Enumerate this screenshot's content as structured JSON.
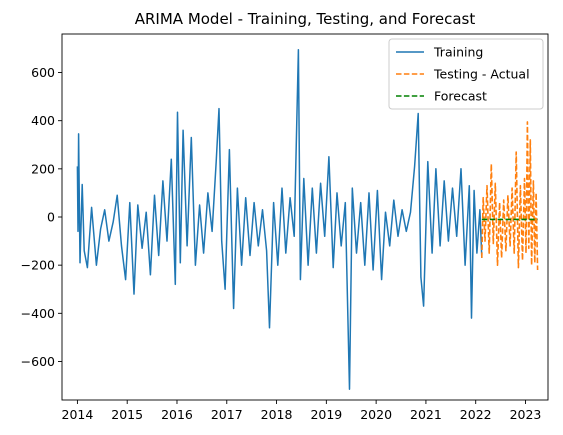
{
  "chart_data": {
    "type": "line",
    "title": "ARIMA Model - Training, Testing, and Forecast",
    "xlabel": "",
    "ylabel": "",
    "x_ticks": [
      "2014",
      "2015",
      "2016",
      "2017",
      "2018",
      "2019",
      "2020",
      "2021",
      "2022",
      "2023"
    ],
    "y_ticks": [
      "−600",
      "−400",
      "−200",
      "0",
      "200",
      "400",
      "600"
    ],
    "xlim": [
      "2013-09-10",
      "2023-06-15"
    ],
    "ylim": [
      -760,
      760
    ],
    "grid": false,
    "legend_position": "top-right",
    "series": [
      {
        "name": "Training",
        "color": "#1f77b4",
        "style": "solid",
        "points": [
          [
            "2014-01-01",
            210
          ],
          [
            "2014-01-05",
            -60
          ],
          [
            "2014-01-10",
            345
          ],
          [
            "2014-01-20",
            -190
          ],
          [
            "2014-02-05",
            135
          ],
          [
            "2014-02-20",
            -140
          ],
          [
            "2014-03-15",
            -210
          ],
          [
            "2014-04-15",
            40
          ],
          [
            "2014-05-20",
            -200
          ],
          [
            "2014-06-20",
            -50
          ],
          [
            "2014-07-20",
            30
          ],
          [
            "2014-08-20",
            -100
          ],
          [
            "2014-09-20",
            -20
          ],
          [
            "2014-10-20",
            90
          ],
          [
            "2014-11-20",
            -120
          ],
          [
            "2014-12-20",
            -260
          ],
          [
            "2015-01-20",
            60
          ],
          [
            "2015-02-20",
            -320
          ],
          [
            "2015-03-20",
            50
          ],
          [
            "2015-04-20",
            -130
          ],
          [
            "2015-05-20",
            20
          ],
          [
            "2015-06-20",
            -240
          ],
          [
            "2015-07-20",
            90
          ],
          [
            "2015-08-20",
            -160
          ],
          [
            "2015-09-20",
            150
          ],
          [
            "2015-10-20",
            -100
          ],
          [
            "2015-11-20",
            240
          ],
          [
            "2015-12-20",
            -280
          ],
          [
            "2016-01-05",
            435
          ],
          [
            "2016-01-25",
            -190
          ],
          [
            "2016-02-15",
            360
          ],
          [
            "2016-03-15",
            -120
          ],
          [
            "2016-04-15",
            330
          ],
          [
            "2016-05-15",
            -200
          ],
          [
            "2016-06-15",
            50
          ],
          [
            "2016-07-15",
            -150
          ],
          [
            "2016-08-15",
            100
          ],
          [
            "2016-09-15",
            -60
          ],
          [
            "2016-10-15",
            230
          ],
          [
            "2016-11-05",
            450
          ],
          [
            "2016-11-25",
            -100
          ],
          [
            "2016-12-20",
            -300
          ],
          [
            "2017-01-20",
            280
          ],
          [
            "2017-02-20",
            -380
          ],
          [
            "2017-03-20",
            120
          ],
          [
            "2017-04-20",
            -200
          ],
          [
            "2017-05-20",
            80
          ],
          [
            "2017-06-20",
            -160
          ],
          [
            "2017-07-20",
            60
          ],
          [
            "2017-08-20",
            -120
          ],
          [
            "2017-09-20",
            30
          ],
          [
            "2017-10-20",
            -140
          ],
          [
            "2017-11-10",
            -460
          ],
          [
            "2017-12-10",
            60
          ],
          [
            "2018-01-10",
            -200
          ],
          [
            "2018-02-10",
            120
          ],
          [
            "2018-03-10",
            -150
          ],
          [
            "2018-04-10",
            80
          ],
          [
            "2018-05-10",
            -80
          ],
          [
            "2018-06-10",
            695
          ],
          [
            "2018-06-25",
            -260
          ],
          [
            "2018-07-20",
            160
          ],
          [
            "2018-08-20",
            -200
          ],
          [
            "2018-09-20",
            120
          ],
          [
            "2018-10-20",
            -150
          ],
          [
            "2018-11-20",
            140
          ],
          [
            "2018-12-20",
            -80
          ],
          [
            "2019-01-20",
            250
          ],
          [
            "2019-02-20",
            -210
          ],
          [
            "2019-03-20",
            100
          ],
          [
            "2019-04-20",
            -120
          ],
          [
            "2019-05-20",
            60
          ],
          [
            "2019-06-20",
            -715
          ],
          [
            "2019-07-10",
            120
          ],
          [
            "2019-08-10",
            -150
          ],
          [
            "2019-09-10",
            60
          ],
          [
            "2019-10-10",
            -200
          ],
          [
            "2019-11-10",
            100
          ],
          [
            "2019-12-10",
            -220
          ],
          [
            "2020-01-10",
            110
          ],
          [
            "2020-02-10",
            -260
          ],
          [
            "2020-03-10",
            20
          ],
          [
            "2020-04-10",
            -120
          ],
          [
            "2020-05-10",
            70
          ],
          [
            "2020-06-10",
            -80
          ],
          [
            "2020-07-10",
            30
          ],
          [
            "2020-08-10",
            -60
          ],
          [
            "2020-09-10",
            20
          ],
          [
            "2020-10-10",
            210
          ],
          [
            "2020-11-05",
            430
          ],
          [
            "2020-11-25",
            -250
          ],
          [
            "2020-12-15",
            -370
          ],
          [
            "2021-01-15",
            230
          ],
          [
            "2021-02-15",
            -150
          ],
          [
            "2021-03-15",
            200
          ],
          [
            "2021-04-15",
            -120
          ],
          [
            "2021-05-15",
            150
          ],
          [
            "2021-06-15",
            -100
          ],
          [
            "2021-07-15",
            120
          ],
          [
            "2021-08-15",
            -80
          ],
          [
            "2021-09-15",
            200
          ],
          [
            "2021-10-15",
            -200
          ],
          [
            "2021-11-15",
            130
          ],
          [
            "2021-12-01",
            -420
          ],
          [
            "2021-12-20",
            110
          ],
          [
            "2022-01-10",
            -150
          ],
          [
            "2022-02-01",
            30
          ],
          [
            "2022-02-15",
            -170
          ]
        ]
      },
      {
        "name": "Testing - Actual",
        "color": "#ff7f0e",
        "style": "dashed",
        "points": [
          [
            "2022-02-15",
            -170
          ],
          [
            "2022-02-25",
            80
          ],
          [
            "2022-03-10",
            -100
          ],
          [
            "2022-03-25",
            130
          ],
          [
            "2022-04-10",
            -150
          ],
          [
            "2022-04-25",
            220
          ],
          [
            "2022-05-10",
            -110
          ],
          [
            "2022-05-25",
            140
          ],
          [
            "2022-06-10",
            -200
          ],
          [
            "2022-06-25",
            60
          ],
          [
            "2022-07-10",
            -170
          ],
          [
            "2022-07-25",
            70
          ],
          [
            "2022-08-10",
            -140
          ],
          [
            "2022-08-25",
            90
          ],
          [
            "2022-09-10",
            -120
          ],
          [
            "2022-09-25",
            120
          ],
          [
            "2022-10-10",
            -150
          ],
          [
            "2022-10-25",
            270
          ],
          [
            "2022-11-10",
            -210
          ],
          [
            "2022-11-25",
            130
          ],
          [
            "2022-12-10",
            -180
          ],
          [
            "2022-12-25",
            160
          ],
          [
            "2023-01-05",
            -150
          ],
          [
            "2023-01-15",
            395
          ],
          [
            "2023-01-25",
            -130
          ],
          [
            "2023-02-05",
            320
          ],
          [
            "2023-02-15",
            -200
          ],
          [
            "2023-02-28",
            150
          ],
          [
            "2023-03-10",
            -190
          ],
          [
            "2023-03-20",
            100
          ],
          [
            "2023-03-31",
            -220
          ]
        ]
      },
      {
        "name": "Forecast",
        "color": "#008000",
        "style": "dashed",
        "points": [
          [
            "2022-02-15",
            -10
          ],
          [
            "2023-03-31",
            -10
          ]
        ]
      }
    ]
  }
}
